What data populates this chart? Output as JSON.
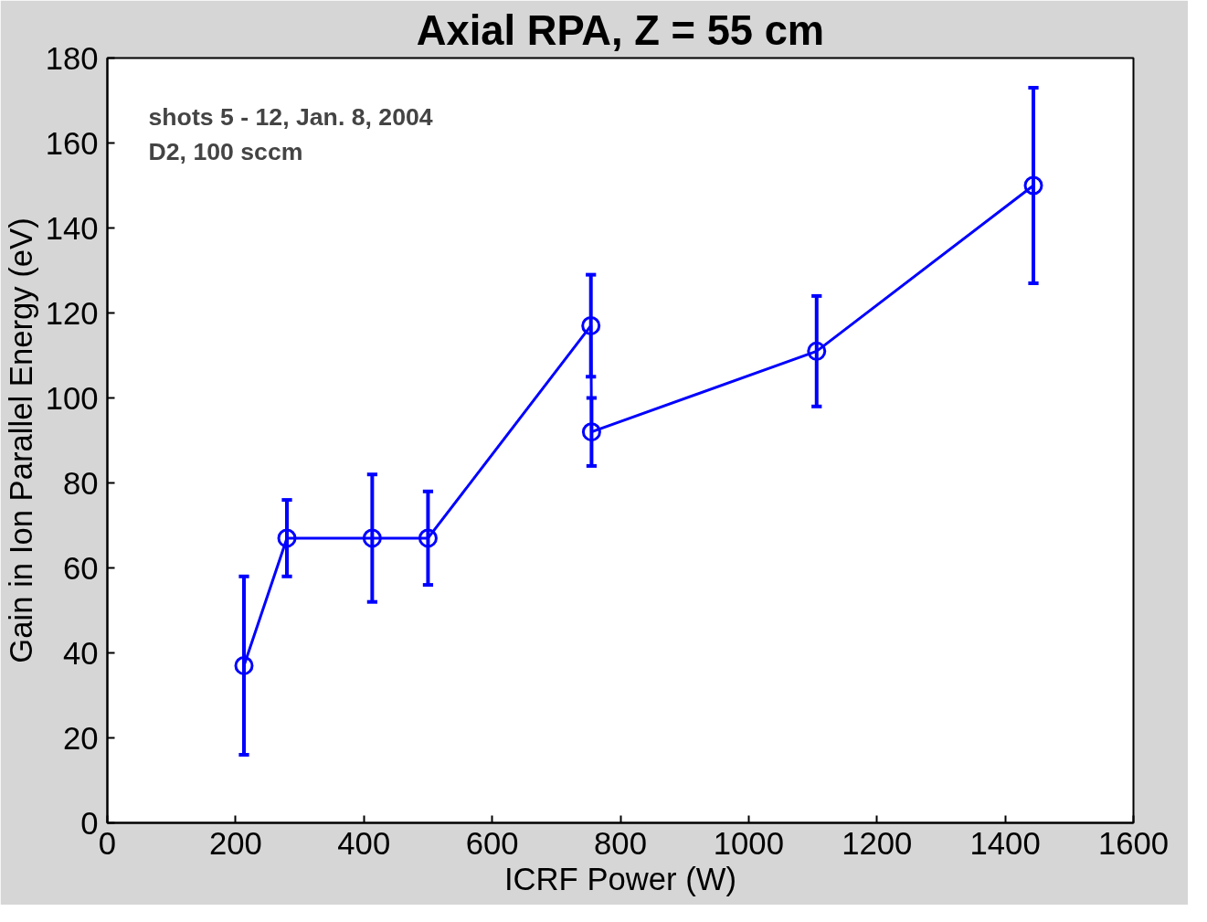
{
  "chart_data": {
    "type": "line",
    "title": "Axial RPA, Z = 55 cm",
    "xlabel": "ICRF Power (W)",
    "ylabel": "Gain in Ion Parallel Energy (eV)",
    "x": [
      213,
      280,
      413,
      500,
      754,
      755,
      1106,
      1444
    ],
    "series": [
      {
        "color": "#0000ff",
        "values": [
          37,
          67,
          67,
          67,
          117,
          92,
          111,
          150
        ],
        "errors": [
          21,
          9,
          15,
          11,
          12,
          8,
          13,
          23
        ]
      }
    ],
    "xlim": [
      0,
      1600
    ],
    "xticks": [
      0,
      200,
      400,
      600,
      800,
      1000,
      1200,
      1400,
      1600
    ],
    "ylim": [
      0,
      180
    ],
    "yticks": [
      0,
      20,
      40,
      60,
      80,
      100,
      120,
      140,
      160,
      180
    ],
    "grid": false,
    "marker": "circle",
    "line_style": "solid",
    "annotations": [
      "shots 5 - 12, Jan. 8, 2004",
      "D2, 100 sccm"
    ]
  }
}
